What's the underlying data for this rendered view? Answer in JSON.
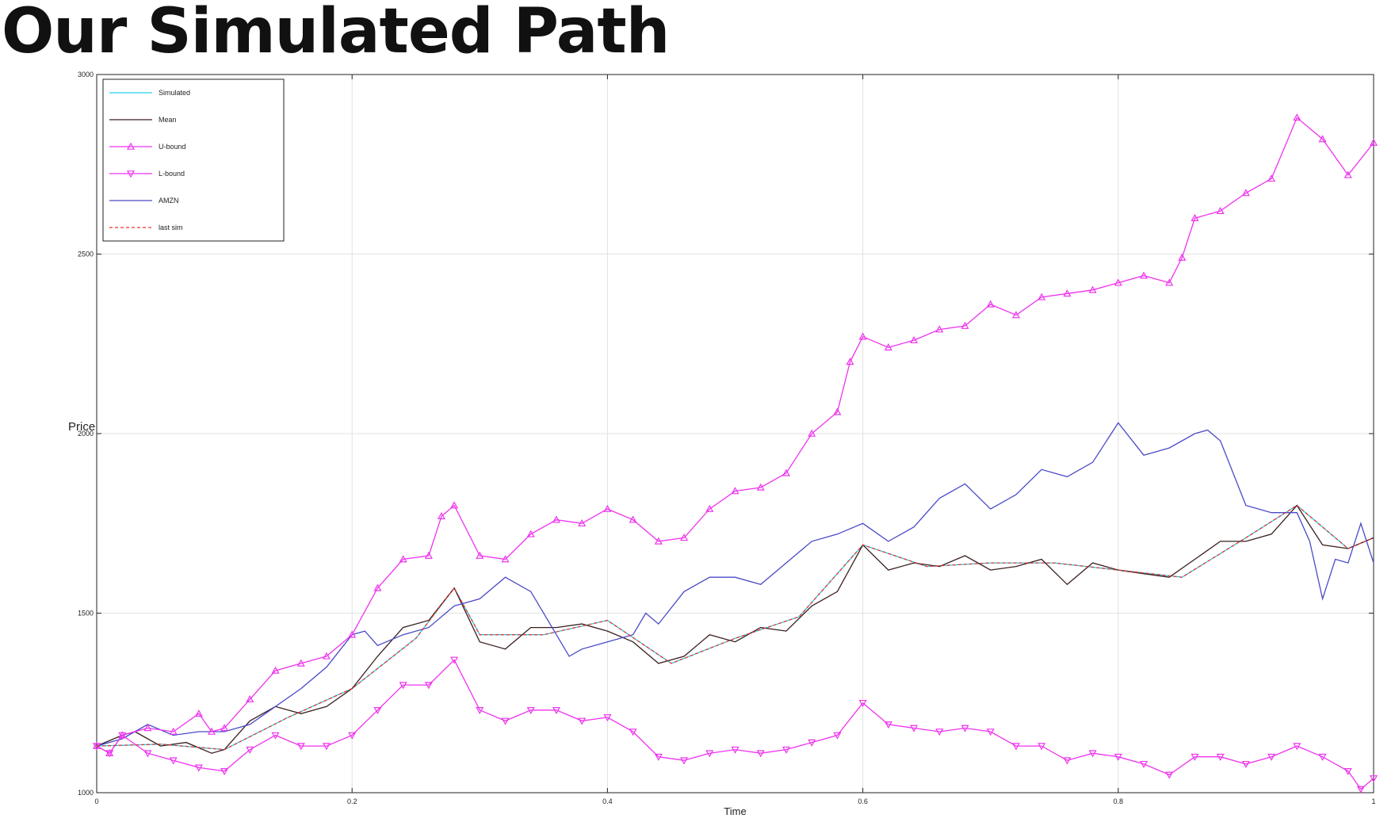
{
  "slide": {
    "title": "Our Simulated Path"
  },
  "chart_data": {
    "type": "line",
    "xlabel": "Time",
    "ylabel": "Price",
    "xlim": [
      0,
      1
    ],
    "ylim": [
      1000,
      3000
    ],
    "xticks": [
      0,
      0.2,
      0.4,
      0.6,
      0.8,
      1
    ],
    "xtick_labels": [
      "0",
      "0.2",
      "0.4",
      "0.6",
      "0.8",
      "1"
    ],
    "yticks": [
      1000,
      1500,
      2000,
      2500,
      3000
    ],
    "ytick_labels": [
      "1000",
      "1500",
      "2000",
      "2500",
      "3000"
    ],
    "grid": true,
    "legend_position": "top-left",
    "legend": [
      "Simulated",
      "Mean",
      "U-bound",
      "L-bound",
      "AMZN",
      "last sim"
    ],
    "series": [
      {
        "name": "Simulated",
        "color": "#22d3e6",
        "style": "solid",
        "marker": "none",
        "x": [
          0,
          0.05,
          0.1,
          0.15,
          0.2,
          0.25,
          0.28,
          0.3,
          0.35,
          0.4,
          0.45,
          0.5,
          0.55,
          0.6,
          0.65,
          0.7,
          0.75,
          0.8,
          0.85,
          0.9,
          0.94,
          0.98,
          1
        ],
        "y": [
          1130,
          1135,
          1120,
          1210,
          1290,
          1430,
          1570,
          1440,
          1440,
          1480,
          1360,
          1430,
          1490,
          1690,
          1630,
          1640,
          1640,
          1620,
          1600,
          1710,
          1800,
          1680,
          1710
        ]
      },
      {
        "name": "Mean",
        "color": "#3a1f1f",
        "style": "solid",
        "marker": "none",
        "x": [
          0,
          0.02,
          0.03,
          0.05,
          0.07,
          0.09,
          0.1,
          0.12,
          0.14,
          0.16,
          0.18,
          0.2,
          0.22,
          0.24,
          0.26,
          0.28,
          0.3,
          0.32,
          0.34,
          0.36,
          0.38,
          0.4,
          0.42,
          0.44,
          0.46,
          0.48,
          0.5,
          0.52,
          0.54,
          0.56,
          0.58,
          0.6,
          0.62,
          0.64,
          0.66,
          0.68,
          0.7,
          0.72,
          0.74,
          0.76,
          0.78,
          0.8,
          0.82,
          0.84,
          0.86,
          0.88,
          0.9,
          0.92,
          0.94,
          0.96,
          0.98,
          1
        ],
        "y": [
          1130,
          1160,
          1170,
          1130,
          1140,
          1110,
          1120,
          1200,
          1240,
          1220,
          1240,
          1290,
          1380,
          1460,
          1480,
          1570,
          1420,
          1400,
          1460,
          1460,
          1470,
          1450,
          1420,
          1360,
          1380,
          1440,
          1420,
          1460,
          1450,
          1520,
          1560,
          1690,
          1620,
          1640,
          1630,
          1660,
          1620,
          1630,
          1650,
          1580,
          1640,
          1620,
          1610,
          1600,
          1650,
          1700,
          1700,
          1720,
          1800,
          1690,
          1680,
          1710
        ]
      },
      {
        "name": "U-bound",
        "color": "#ee33ee",
        "style": "solid",
        "marker": "triangle-up",
        "x": [
          0,
          0.01,
          0.02,
          0.04,
          0.06,
          0.08,
          0.09,
          0.1,
          0.12,
          0.14,
          0.16,
          0.18,
          0.2,
          0.22,
          0.24,
          0.26,
          0.27,
          0.28,
          0.3,
          0.32,
          0.34,
          0.36,
          0.38,
          0.4,
          0.42,
          0.44,
          0.46,
          0.48,
          0.5,
          0.52,
          0.54,
          0.56,
          0.58,
          0.59,
          0.6,
          0.62,
          0.64,
          0.66,
          0.68,
          0.7,
          0.72,
          0.74,
          0.76,
          0.78,
          0.8,
          0.82,
          0.84,
          0.85,
          0.86,
          0.88,
          0.9,
          0.92,
          0.94,
          0.96,
          0.98,
          1
        ],
        "y": [
          1130,
          1110,
          1160,
          1180,
          1170,
          1220,
          1170,
          1180,
          1260,
          1340,
          1360,
          1380,
          1440,
          1570,
          1650,
          1660,
          1770,
          1800,
          1660,
          1650,
          1720,
          1760,
          1750,
          1790,
          1760,
          1700,
          1710,
          1790,
          1840,
          1850,
          1890,
          2000,
          2060,
          2200,
          2270,
          2240,
          2260,
          2290,
          2300,
          2360,
          2330,
          2380,
          2390,
          2400,
          2420,
          2440,
          2420,
          2490,
          2600,
          2620,
          2670,
          2710,
          2880,
          2820,
          2720,
          2810
        ]
      },
      {
        "name": "L-bound",
        "color": "#ee33ee",
        "style": "solid",
        "marker": "triangle-down",
        "x": [
          0,
          0.01,
          0.02,
          0.04,
          0.06,
          0.08,
          0.1,
          0.12,
          0.14,
          0.16,
          0.18,
          0.2,
          0.22,
          0.24,
          0.26,
          0.28,
          0.3,
          0.32,
          0.34,
          0.36,
          0.38,
          0.4,
          0.42,
          0.44,
          0.46,
          0.48,
          0.5,
          0.52,
          0.54,
          0.56,
          0.58,
          0.6,
          0.62,
          0.64,
          0.66,
          0.68,
          0.7,
          0.72,
          0.74,
          0.76,
          0.78,
          0.8,
          0.82,
          0.84,
          0.86,
          0.88,
          0.9,
          0.92,
          0.94,
          0.96,
          0.98,
          0.99,
          1
        ],
        "y": [
          1130,
          1110,
          1160,
          1110,
          1090,
          1070,
          1060,
          1120,
          1160,
          1130,
          1130,
          1160,
          1230,
          1300,
          1300,
          1370,
          1230,
          1200,
          1230,
          1230,
          1200,
          1210,
          1170,
          1100,
          1090,
          1110,
          1120,
          1110,
          1120,
          1140,
          1160,
          1250,
          1190,
          1180,
          1170,
          1180,
          1170,
          1130,
          1130,
          1090,
          1110,
          1100,
          1080,
          1050,
          1100,
          1100,
          1080,
          1100,
          1130,
          1100,
          1060,
          1010,
          1040
        ]
      },
      {
        "name": "AMZN",
        "color": "#4a4ac8",
        "style": "solid",
        "marker": "none",
        "x": [
          0,
          0.02,
          0.04,
          0.06,
          0.08,
          0.1,
          0.12,
          0.14,
          0.16,
          0.18,
          0.2,
          0.21,
          0.22,
          0.24,
          0.26,
          0.28,
          0.3,
          0.32,
          0.34,
          0.36,
          0.37,
          0.38,
          0.4,
          0.42,
          0.43,
          0.44,
          0.46,
          0.48,
          0.5,
          0.52,
          0.54,
          0.56,
          0.58,
          0.6,
          0.62,
          0.64,
          0.66,
          0.68,
          0.7,
          0.72,
          0.74,
          0.76,
          0.78,
          0.8,
          0.82,
          0.84,
          0.86,
          0.87,
          0.88,
          0.9,
          0.92,
          0.94,
          0.95,
          0.96,
          0.97,
          0.98,
          0.99,
          1
        ],
        "y": [
          1130,
          1150,
          1190,
          1160,
          1170,
          1170,
          1190,
          1240,
          1290,
          1350,
          1440,
          1450,
          1410,
          1440,
          1460,
          1520,
          1540,
          1600,
          1560,
          1440,
          1380,
          1400,
          1420,
          1440,
          1500,
          1470,
          1560,
          1600,
          1600,
          1580,
          1640,
          1700,
          1720,
          1750,
          1700,
          1740,
          1820,
          1860,
          1790,
          1830,
          1900,
          1880,
          1920,
          2030,
          1940,
          1960,
          2000,
          2010,
          1980,
          1800,
          1780,
          1780,
          1700,
          1540,
          1650,
          1640,
          1750,
          1640
        ]
      },
      {
        "name": "last sim",
        "color": "#ee3333",
        "style": "dashed",
        "marker": "none",
        "x": [
          0,
          0.05,
          0.1,
          0.15,
          0.2,
          0.25,
          0.28,
          0.3,
          0.35,
          0.4,
          0.45,
          0.5,
          0.55,
          0.6,
          0.65,
          0.7,
          0.75,
          0.8,
          0.85,
          0.9,
          0.94,
          0.98,
          1
        ],
        "y": [
          1130,
          1135,
          1120,
          1210,
          1290,
          1430,
          1570,
          1440,
          1440,
          1480,
          1360,
          1430,
          1490,
          1690,
          1630,
          1640,
          1640,
          1620,
          1600,
          1710,
          1800,
          1680,
          1710
        ]
      }
    ]
  }
}
